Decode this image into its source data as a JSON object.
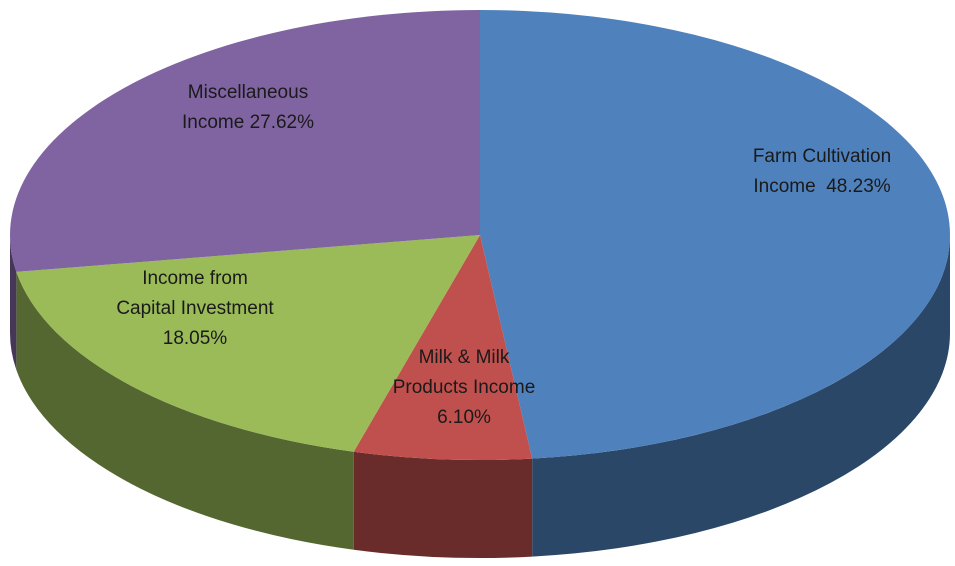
{
  "chart_data": {
    "type": "pie",
    "style": "3d-exploded-none",
    "title": "",
    "slices": [
      {
        "label_lines": [
          "Farm Cultivation",
          "Income  48.23%"
        ],
        "value": 48.23,
        "color": "#4f81bd"
      },
      {
        "label_lines": [
          "Milk & Milk",
          "Products Income",
          "6.10%"
        ],
        "value": 6.1,
        "color": "#c0504d"
      },
      {
        "label_lines": [
          "Income from",
          "Capital Investment",
          "18.05%"
        ],
        "value": 18.05,
        "color": "#9bbb59"
      },
      {
        "label_lines": [
          "Miscellaneous",
          "Income 27.62%"
        ],
        "value": 27.62,
        "color": "#8064a2"
      }
    ]
  }
}
